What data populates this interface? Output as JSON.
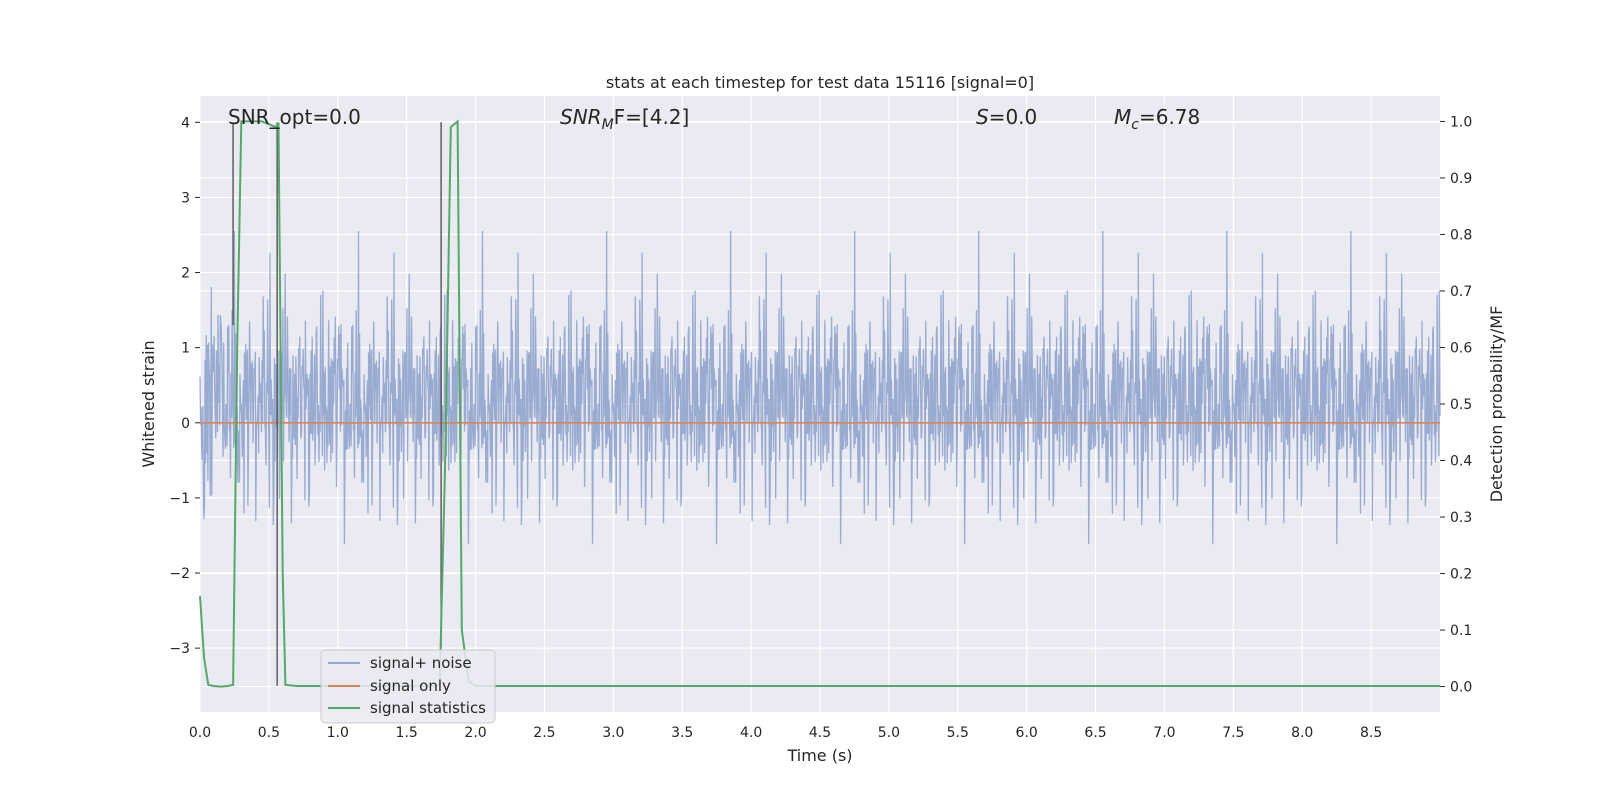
{
  "chart_data": {
    "type": "line",
    "title": "stats at each timestep for test data 15116 [signal=0]",
    "xlabel": "Time (s)",
    "ylabel": "Whitened strain",
    "y2label": "Detection probability/MF",
    "xlim": [
      0,
      9.0
    ],
    "ylim": [
      -3.85,
      4.35
    ],
    "y2lim": [
      -0.045,
      1.045
    ],
    "xticks": [
      "0.0",
      "0.5",
      "1.0",
      "1.5",
      "2.0",
      "2.5",
      "3.0",
      "3.5",
      "4.0",
      "4.5",
      "5.0",
      "5.5",
      "6.0",
      "6.5",
      "7.0",
      "7.5",
      "8.0",
      "8.5"
    ],
    "yticks": [
      "4",
      "3",
      "2",
      "1",
      "0",
      "−1",
      "−2",
      "−3"
    ],
    "y2ticks": [
      "1.0",
      "0.9",
      "0.8",
      "0.7",
      "0.6",
      "0.5",
      "0.4",
      "0.3",
      "0.2",
      "0.1",
      "0.0"
    ],
    "grid": true,
    "legend_position": "lower-left",
    "annotations": {
      "snr_opt": "SNR_opt=0.0",
      "snr_mf_main": "SNR",
      "snr_mf_sub": "M",
      "snr_mf_rest": "F=[4.2]",
      "s_main": "S",
      "s_rest": "=0.0",
      "mc_main": "M",
      "mc_sub": "c",
      "mc_rest": "=6.78"
    },
    "series": [
      {
        "name": "signal+ noise",
        "color": "#95a8cf",
        "description_stats": {
          "approx_envelope": [
            -1.6,
            1.6
          ],
          "max_peak": 4.0,
          "min_peak": -3.5
        }
      },
      {
        "name": "signal only",
        "color": "#dd8452",
        "x": [
          0,
          9.0
        ],
        "y": [
          0,
          0
        ]
      },
      {
        "name": "signal statistics",
        "color": "#55a868",
        "axis": "right",
        "x": [
          0.0,
          0.03,
          0.06,
          0.1,
          0.15,
          0.2,
          0.24,
          0.27,
          0.3,
          0.35,
          0.4,
          0.45,
          0.5,
          0.55,
          0.57,
          0.6,
          0.62,
          0.7,
          0.8,
          1.0,
          1.2,
          1.5,
          1.7,
          1.74,
          1.78,
          1.82,
          1.87,
          1.9,
          1.95,
          2.0,
          2.1,
          2.5,
          3.0,
          4.0,
          5.0,
          6.0,
          7.0,
          8.0,
          9.0
        ],
        "y": [
          0.16,
          0.05,
          0.003,
          0.001,
          0.0,
          0.001,
          0.003,
          0.6,
          1.0,
          1.0,
          1.0,
          1.0,
          0.995,
          0.99,
          0.995,
          0.2,
          0.003,
          0.001,
          0.001,
          0.001,
          0.001,
          0.001,
          0.001,
          0.003,
          0.4,
          0.99,
          1.0,
          0.1,
          0.01,
          0.001,
          0.001,
          0.001,
          0.001,
          0.001,
          0.001,
          0.001,
          0.001,
          0.001,
          0.001
        ]
      }
    ],
    "event_markers": [
      {
        "x": 0.24,
        "y_top": 4.0,
        "y_bottom": 1.3
      },
      {
        "x": 0.56,
        "y_top": 4.0,
        "y_bottom": -3.5
      },
      {
        "x": 1.75,
        "y_top": 4.0,
        "y_bottom": -3.0
      }
    ]
  }
}
